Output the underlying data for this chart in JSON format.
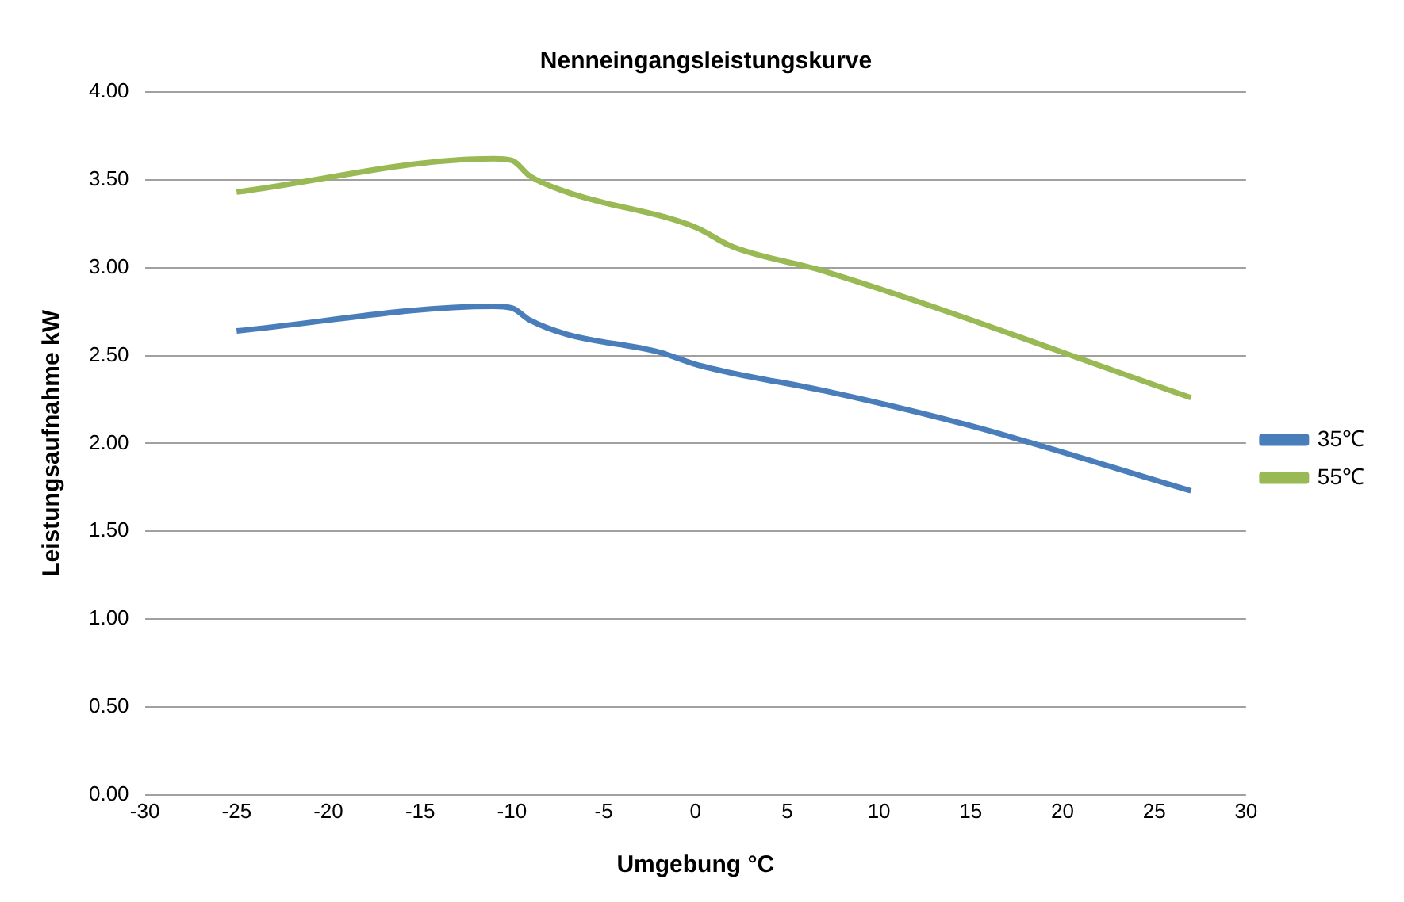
{
  "chart_data": {
    "type": "line",
    "title": "Nenneingangsleistungskurve",
    "xlabel": "Umgebung °C",
    "ylabel": "Leistungsaufnahme kW",
    "xlim": [
      -30,
      30
    ],
    "xticks": [
      -30,
      -25,
      -20,
      -15,
      -10,
      -5,
      0,
      5,
      10,
      15,
      20,
      25,
      30
    ],
    "ylim": [
      0,
      4
    ],
    "yticks": [
      {
        "value": 0,
        "label": "0.00"
      },
      {
        "value": 0.5,
        "label": "0.50"
      },
      {
        "value": 1,
        "label": "1.00"
      },
      {
        "value": 1.5,
        "label": "1.50"
      },
      {
        "value": 2,
        "label": "2.00"
      },
      {
        "value": 2.5,
        "label": "2.50"
      },
      {
        "value": 3,
        "label": "3.00"
      },
      {
        "value": 3.5,
        "label": "3.50"
      },
      {
        "value": 4,
        "label": "4.00"
      }
    ],
    "grid": "y",
    "legend": "right",
    "marker": "none",
    "series": [
      {
        "name": "35℃",
        "color": "#4a7ebb",
        "x": [
          -25,
          -11,
          -10,
          -9,
          -7,
          -2,
          0,
          2,
          7,
          15,
          27
        ],
        "values": [
          2.64,
          2.78,
          2.77,
          2.7,
          2.62,
          2.52,
          2.45,
          2.4,
          2.3,
          2.1,
          1.73
        ]
      },
      {
        "name": "55℃",
        "color": "#98b954",
        "x": [
          -25,
          -11,
          -10,
          -9,
          -7,
          0,
          2,
          7,
          27
        ],
        "values": [
          3.43,
          3.62,
          3.61,
          3.52,
          3.43,
          3.23,
          3.12,
          2.98,
          2.26
        ]
      }
    ]
  }
}
